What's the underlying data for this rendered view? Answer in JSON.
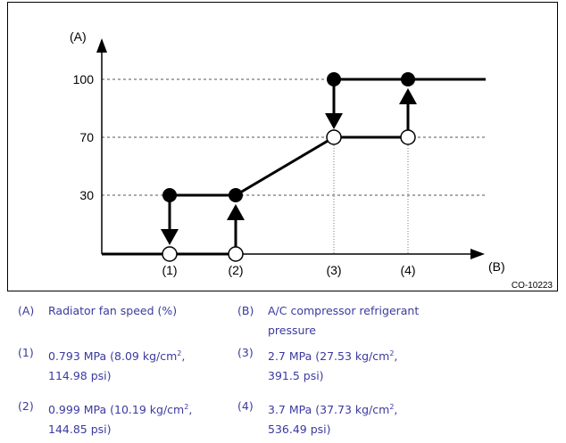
{
  "diagram": {
    "axis_y_label": "(A)",
    "axis_x_label": "(B)",
    "y_ticks": [
      "100",
      "70",
      "30"
    ],
    "x_markers": [
      "(1)",
      "(2)",
      "(3)",
      "(4)"
    ],
    "figure_code": "CO-10223",
    "line_color": "#000000",
    "grid_color": "#555555"
  },
  "legend": {
    "A": {
      "key": "(A)",
      "text": "Radiator fan speed (%)"
    },
    "B": {
      "key": "(B)",
      "line1": "A/C compressor refrigerant",
      "line2": "pressure"
    },
    "p1": {
      "key": "(1)",
      "pre": "0.793 MPa (8.09 kg/cm",
      "sup": "2",
      "post": ",",
      "line2": "114.98 psi)"
    },
    "p2": {
      "key": "(2)",
      "pre": "0.999 MPa (10.19 kg/cm",
      "sup": "2",
      "post": ",",
      "line2": "144.85 psi)"
    },
    "p3": {
      "key": "(3)",
      "pre": "2.7 MPa (27.53 kg/cm",
      "sup": "2",
      "post": ",",
      "line2": "391.5 psi)"
    },
    "p4": {
      "key": "(4)",
      "pre": "3.7 MPa (37.73 kg/cm",
      "sup": "2",
      "post": ",",
      "line2": "536.49 psi)"
    }
  }
}
